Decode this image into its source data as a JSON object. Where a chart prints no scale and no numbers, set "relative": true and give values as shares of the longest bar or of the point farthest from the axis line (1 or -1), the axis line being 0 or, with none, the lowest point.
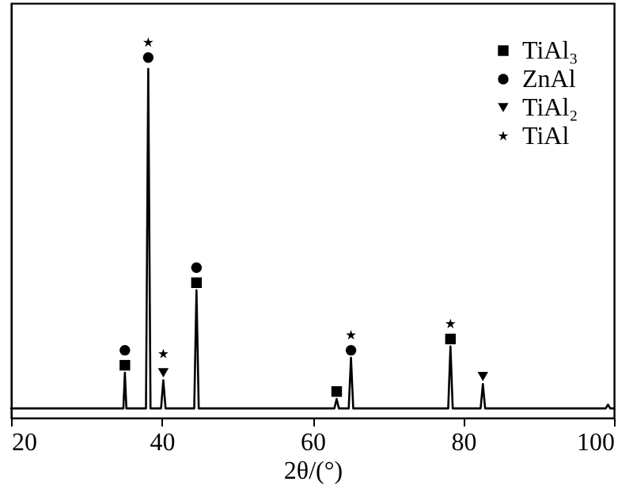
{
  "chart_data": {
    "type": "line",
    "relative": true,
    "xlabel": "2θ/(°)",
    "xlim": [
      20,
      100
    ],
    "xticks": [
      20,
      40,
      60,
      80,
      100
    ],
    "grid": false,
    "legend": "top right",
    "series": [
      {
        "color": "#000000",
        "x": [
          20,
          34.9,
          35.1,
          35.3,
          37.9,
          38.2,
          38.5,
          39.9,
          40.2,
          40.5,
          44.3,
          44.6,
          44.9,
          62.9,
          63.2,
          63.5,
          64.8,
          65.1,
          65.4,
          78.0,
          78.3,
          78.6,
          82.3,
          82.6,
          82.9,
          98.9,
          99.2,
          99.5,
          100
        ],
        "values": [
          0.025,
          0.025,
          0.12,
          0.025,
          0.025,
          0.93,
          0.025,
          0.025,
          0.1,
          0.025,
          0.025,
          0.34,
          0.025,
          0.025,
          0.05,
          0.025,
          0.025,
          0.16,
          0.025,
          0.025,
          0.19,
          0.025,
          0.025,
          0.09,
          0.025,
          0.025,
          0.035,
          0.025,
          0.025
        ]
      },
      {
        "type": "scatter",
        "name": "TiAl₃",
        "marker": "square",
        "color": "#000000",
        "x": [
          35.1,
          44.6,
          63.2,
          78.3
        ],
        "values": [
          0.14,
          0.36,
          0.07,
          0.21
        ]
      },
      {
        "type": "scatter",
        "name": "ZnAl",
        "marker": "circle",
        "color": "#000000",
        "x": [
          35.1,
          38.2,
          44.6,
          65.1
        ],
        "values": [
          0.18,
          0.96,
          0.4,
          0.18
        ]
      },
      {
        "type": "scatter",
        "name": "TiAl₂",
        "marker": "triangle",
        "color": "#000000",
        "x": [
          40.2,
          82.6
        ],
        "values": [
          0.12,
          0.11
        ]
      },
      {
        "type": "scatter",
        "name": "TiAl",
        "marker": "star",
        "color": "#000000",
        "x": [
          38.2,
          40.2,
          65.1,
          78.3
        ],
        "values": [
          1.0,
          0.17,
          0.22,
          0.25
        ]
      }
    ]
  }
}
